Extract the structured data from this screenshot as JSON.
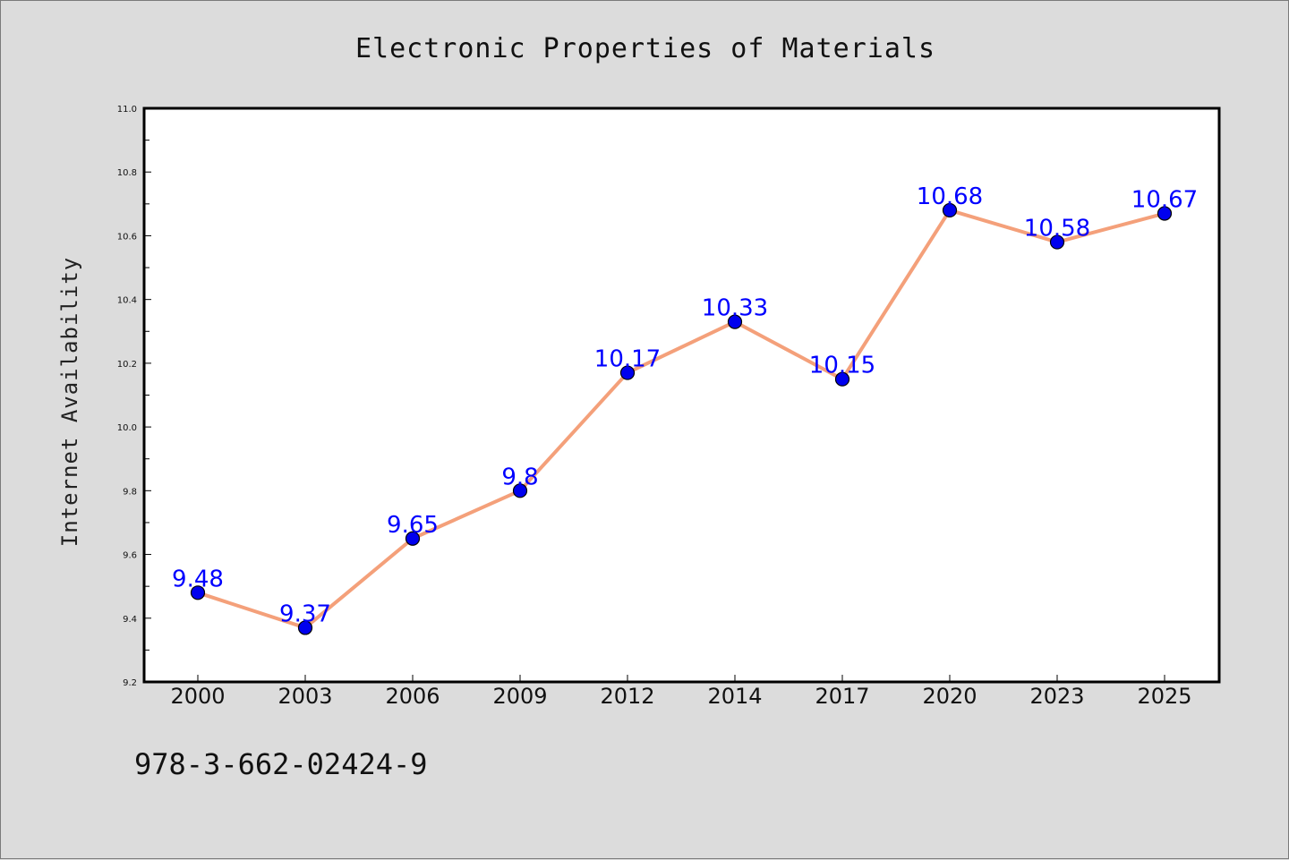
{
  "chart_data": {
    "type": "line",
    "title": "Electronic Properties of Materials",
    "xlabel": "",
    "ylabel": "Internet Availability",
    "categories": [
      "2000",
      "2003",
      "2006",
      "2009",
      "2012",
      "2014",
      "2017",
      "2020",
      "2023",
      "2025"
    ],
    "series": [
      {
        "values": [
          9.48,
          9.37,
          9.65,
          9.8,
          10.17,
          10.33,
          10.15,
          10.68,
          10.58,
          10.67
        ],
        "line_color": "#f4a07a",
        "marker_color": "#0000ee"
      }
    ],
    "data_labels": [
      "9.48",
      "9.37",
      "9.65",
      "9.8",
      "10.17",
      "10.33",
      "10.15",
      "10.68",
      "10.58",
      "10.67"
    ],
    "data_label_color": "#0000ff",
    "ylim": [
      9.2,
      11.0
    ],
    "y_ticks": [
      "9.2",
      "9.4",
      "9.6",
      "9.8",
      "10.0",
      "10.2",
      "10.4",
      "10.6",
      "10.8",
      "11.0"
    ],
    "grid": false,
    "legend": "none"
  },
  "footer": {
    "text": "978-3-662-02424-9"
  }
}
